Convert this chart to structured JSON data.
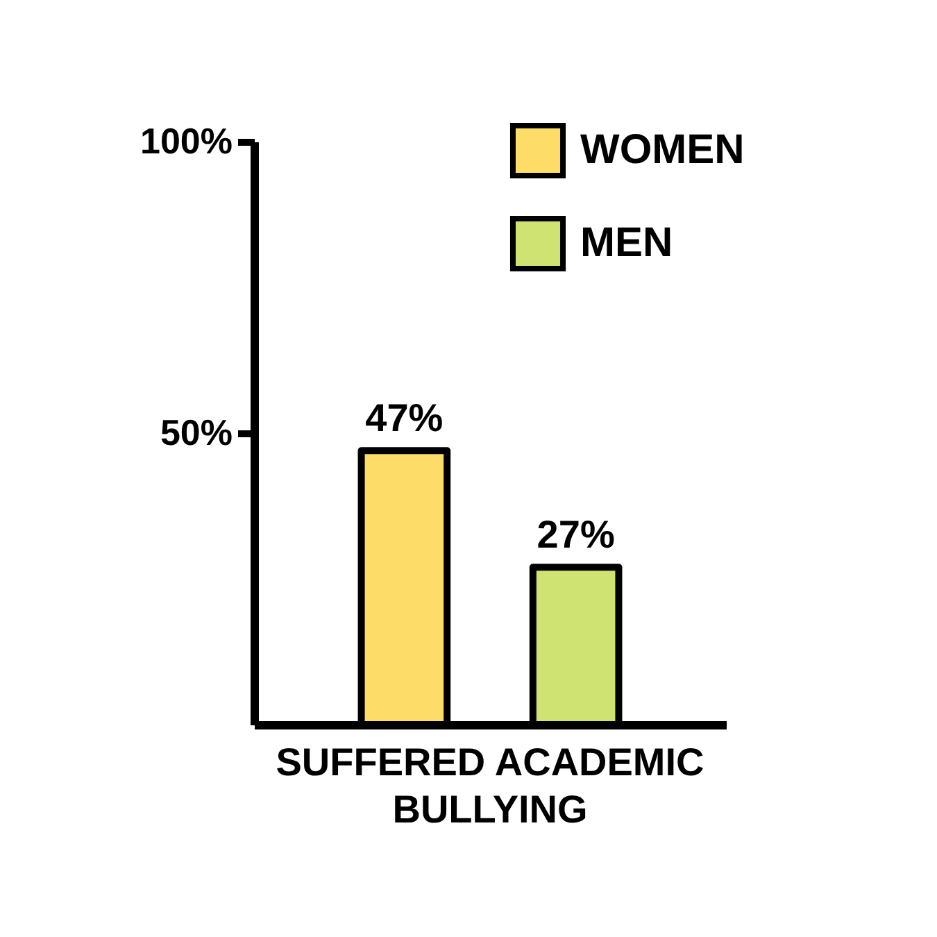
{
  "chart_data": {
    "type": "bar",
    "categories": [
      "SUFFERED ACADEMIC BULLYING"
    ],
    "series": [
      {
        "name": "WOMEN",
        "color": "#fddc68",
        "values": [
          47
        ],
        "value_labels": [
          "47%"
        ]
      },
      {
        "name": "MEN",
        "color": "#cfe372",
        "values": [
          27
        ],
        "value_labels": [
          "27%"
        ]
      }
    ],
    "ylim": [
      0,
      100
    ],
    "yticks": [
      {
        "value": 50,
        "label": "50%"
      },
      {
        "value": 100,
        "label": "100%"
      }
    ],
    "legend": "top right"
  }
}
